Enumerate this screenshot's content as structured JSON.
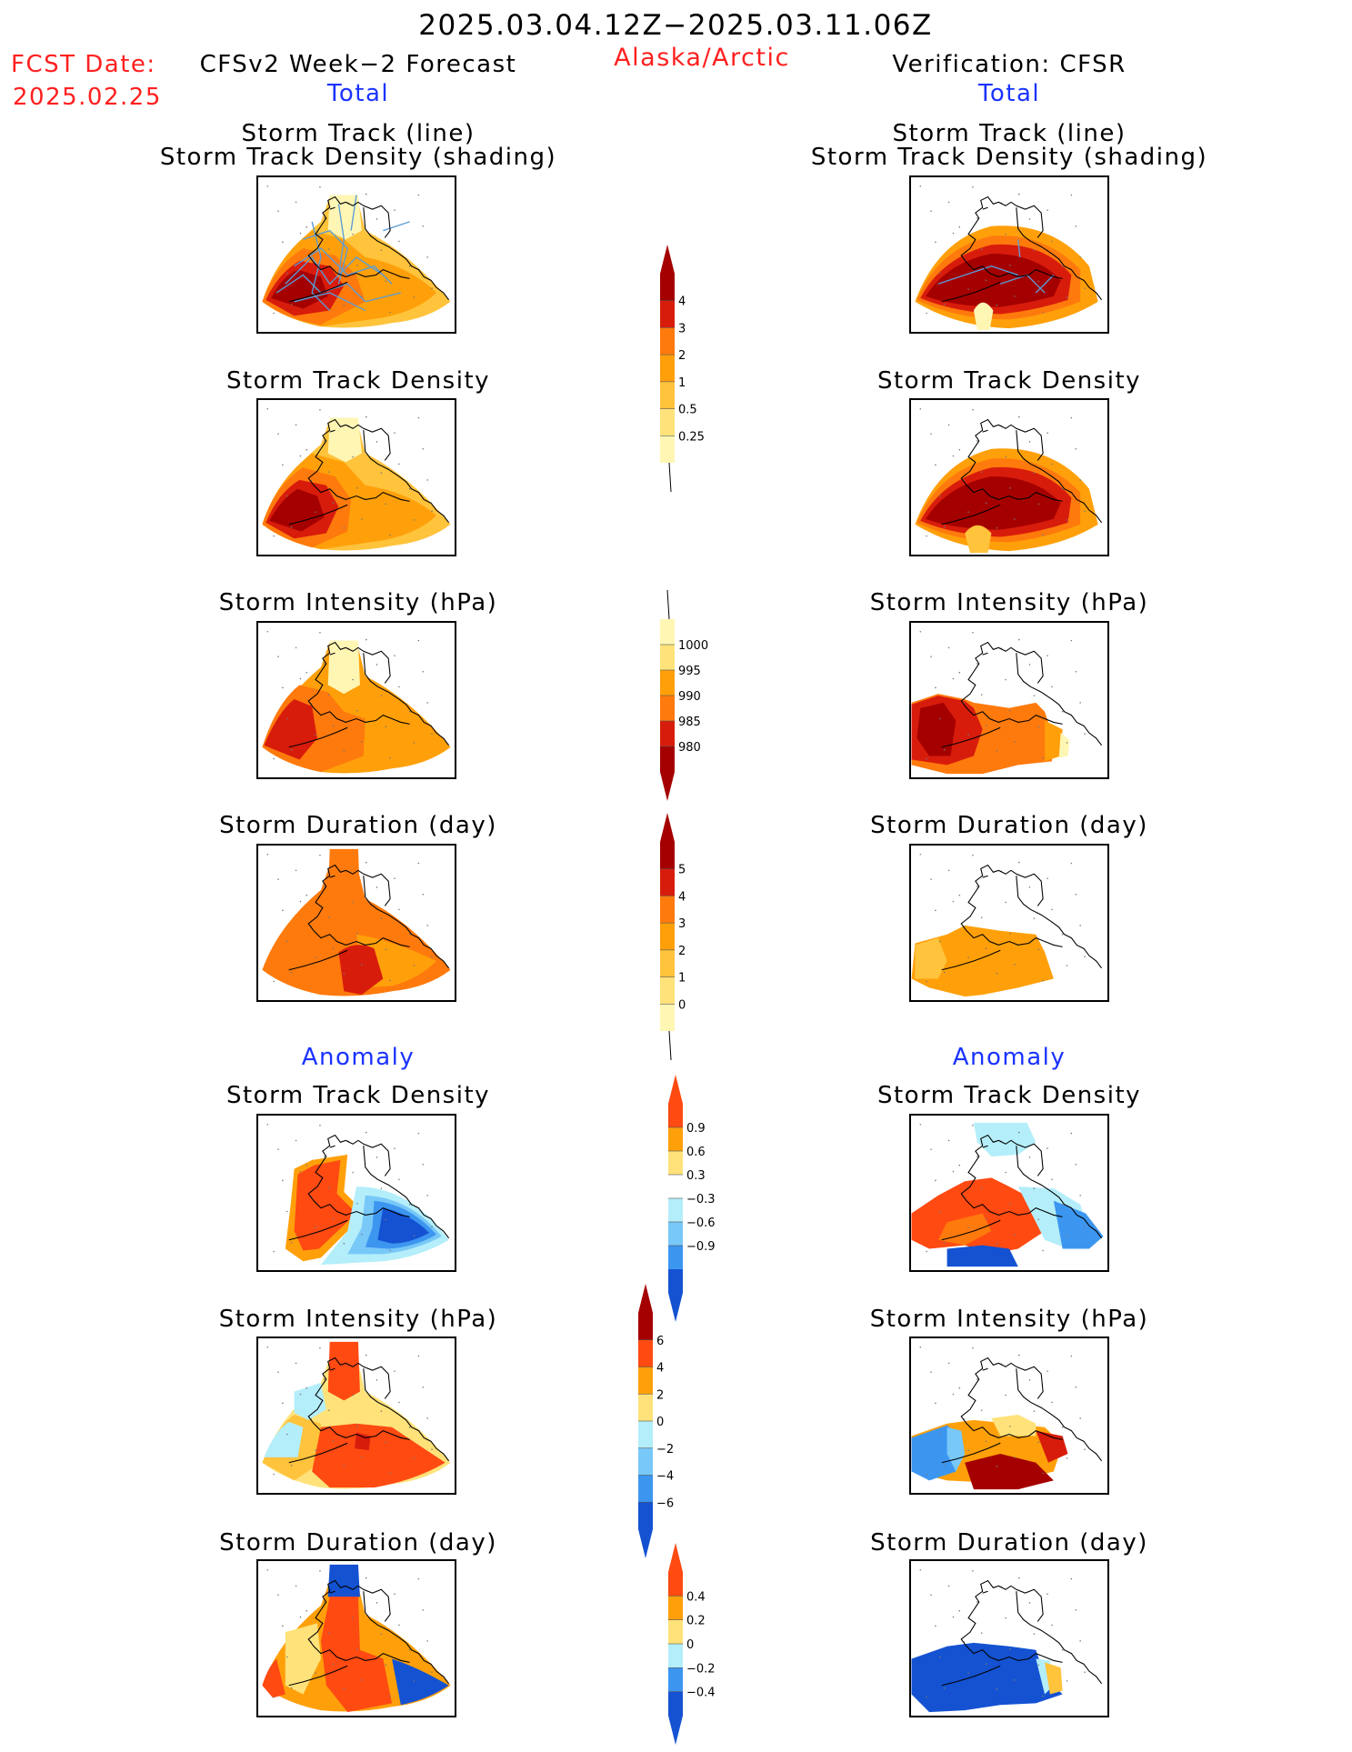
{
  "header": {
    "period": "2025.03.04.12Z−2025.03.11.06Z",
    "region": "Alaska/Arctic",
    "fcst_date_label": "FCST Date:",
    "fcst_date_value": "2025.02.25",
    "forecast_title": "CFSv2 Week−2 Forecast",
    "verification_title": "Verification: CFSR",
    "total_left": "Total",
    "total_right": "Total",
    "anomaly_left": "Anomaly",
    "anomaly_right": "Anomaly"
  },
  "panel_titles": {
    "track_line": "Storm Track (line)",
    "track_density_shading": "Storm Track Density (shading)",
    "track_density": "Storm Track Density",
    "intensity": "Storm Intensity (hPa)",
    "duration": "Storm Duration (day)"
  },
  "colors": {
    "dark_red": "#a50000",
    "red": "#d81c0c",
    "red_orange": "#ff4a12",
    "orange_dark": "#ff7a0c",
    "orange": "#ffa00a",
    "light_orange": "#ffc33c",
    "yellow": "#ffe27a",
    "pale_yellow": "#fff6b4",
    "pale_blue": "#b4eefa",
    "light_blue": "#78c8f8",
    "blue": "#3c96f0",
    "dark_blue": "#1452d2",
    "track_line": "#5a9cd6"
  },
  "chart_data": [
    {
      "type": "heatmap",
      "panel": "forecast-total-storm-track",
      "title": "Storm Track (line) Storm Track Density (shading)",
      "colorbar": {
        "levels": [
          0.25,
          0.5,
          1,
          2,
          3,
          4
        ],
        "labels": [
          "4",
          "3",
          "2",
          "1",
          "0.5",
          "0.25"
        ]
      }
    },
    {
      "type": "heatmap",
      "panel": "forecast-total-storm-track-density",
      "title": "Storm Track Density"
    },
    {
      "type": "heatmap",
      "panel": "forecast-total-storm-intensity",
      "title": "Storm Intensity (hPa)",
      "colorbar": {
        "levels": [
          980,
          985,
          990,
          995,
          1000
        ],
        "labels": [
          "1000",
          "995",
          "990",
          "985",
          "980"
        ]
      }
    },
    {
      "type": "heatmap",
      "panel": "forecast-total-storm-duration",
      "title": "Storm Duration (day)",
      "colorbar": {
        "levels": [
          0,
          1,
          2,
          3,
          4,
          5
        ],
        "labels": [
          "5",
          "4",
          "3",
          "2",
          "1",
          "0"
        ]
      }
    },
    {
      "type": "heatmap",
      "panel": "forecast-anomaly-storm-track-density",
      "title": "Storm Track Density",
      "colorbar": {
        "levels": [
          -0.9,
          -0.6,
          -0.3,
          0.3,
          0.6,
          0.9
        ],
        "labels": [
          "0.9",
          "0.6",
          "0.3",
          "−0.3",
          "−0.6",
          "−0.9"
        ]
      }
    },
    {
      "type": "heatmap",
      "panel": "forecast-anomaly-storm-intensity",
      "title": "Storm Intensity (hPa)",
      "colorbar": {
        "levels": [
          -6,
          -4,
          -2,
          0,
          2,
          4,
          6
        ],
        "labels": [
          "6",
          "4",
          "2",
          "0",
          "−2",
          "−4",
          "−6"
        ]
      }
    },
    {
      "type": "heatmap",
      "panel": "forecast-anomaly-storm-duration",
      "title": "Storm Duration (day)",
      "colorbar": {
        "levels": [
          -0.4,
          -0.2,
          0,
          0.2,
          0.4
        ],
        "labels": [
          "0.4",
          "0.2",
          "0",
          "−0.2",
          "−0.4"
        ]
      }
    }
  ]
}
